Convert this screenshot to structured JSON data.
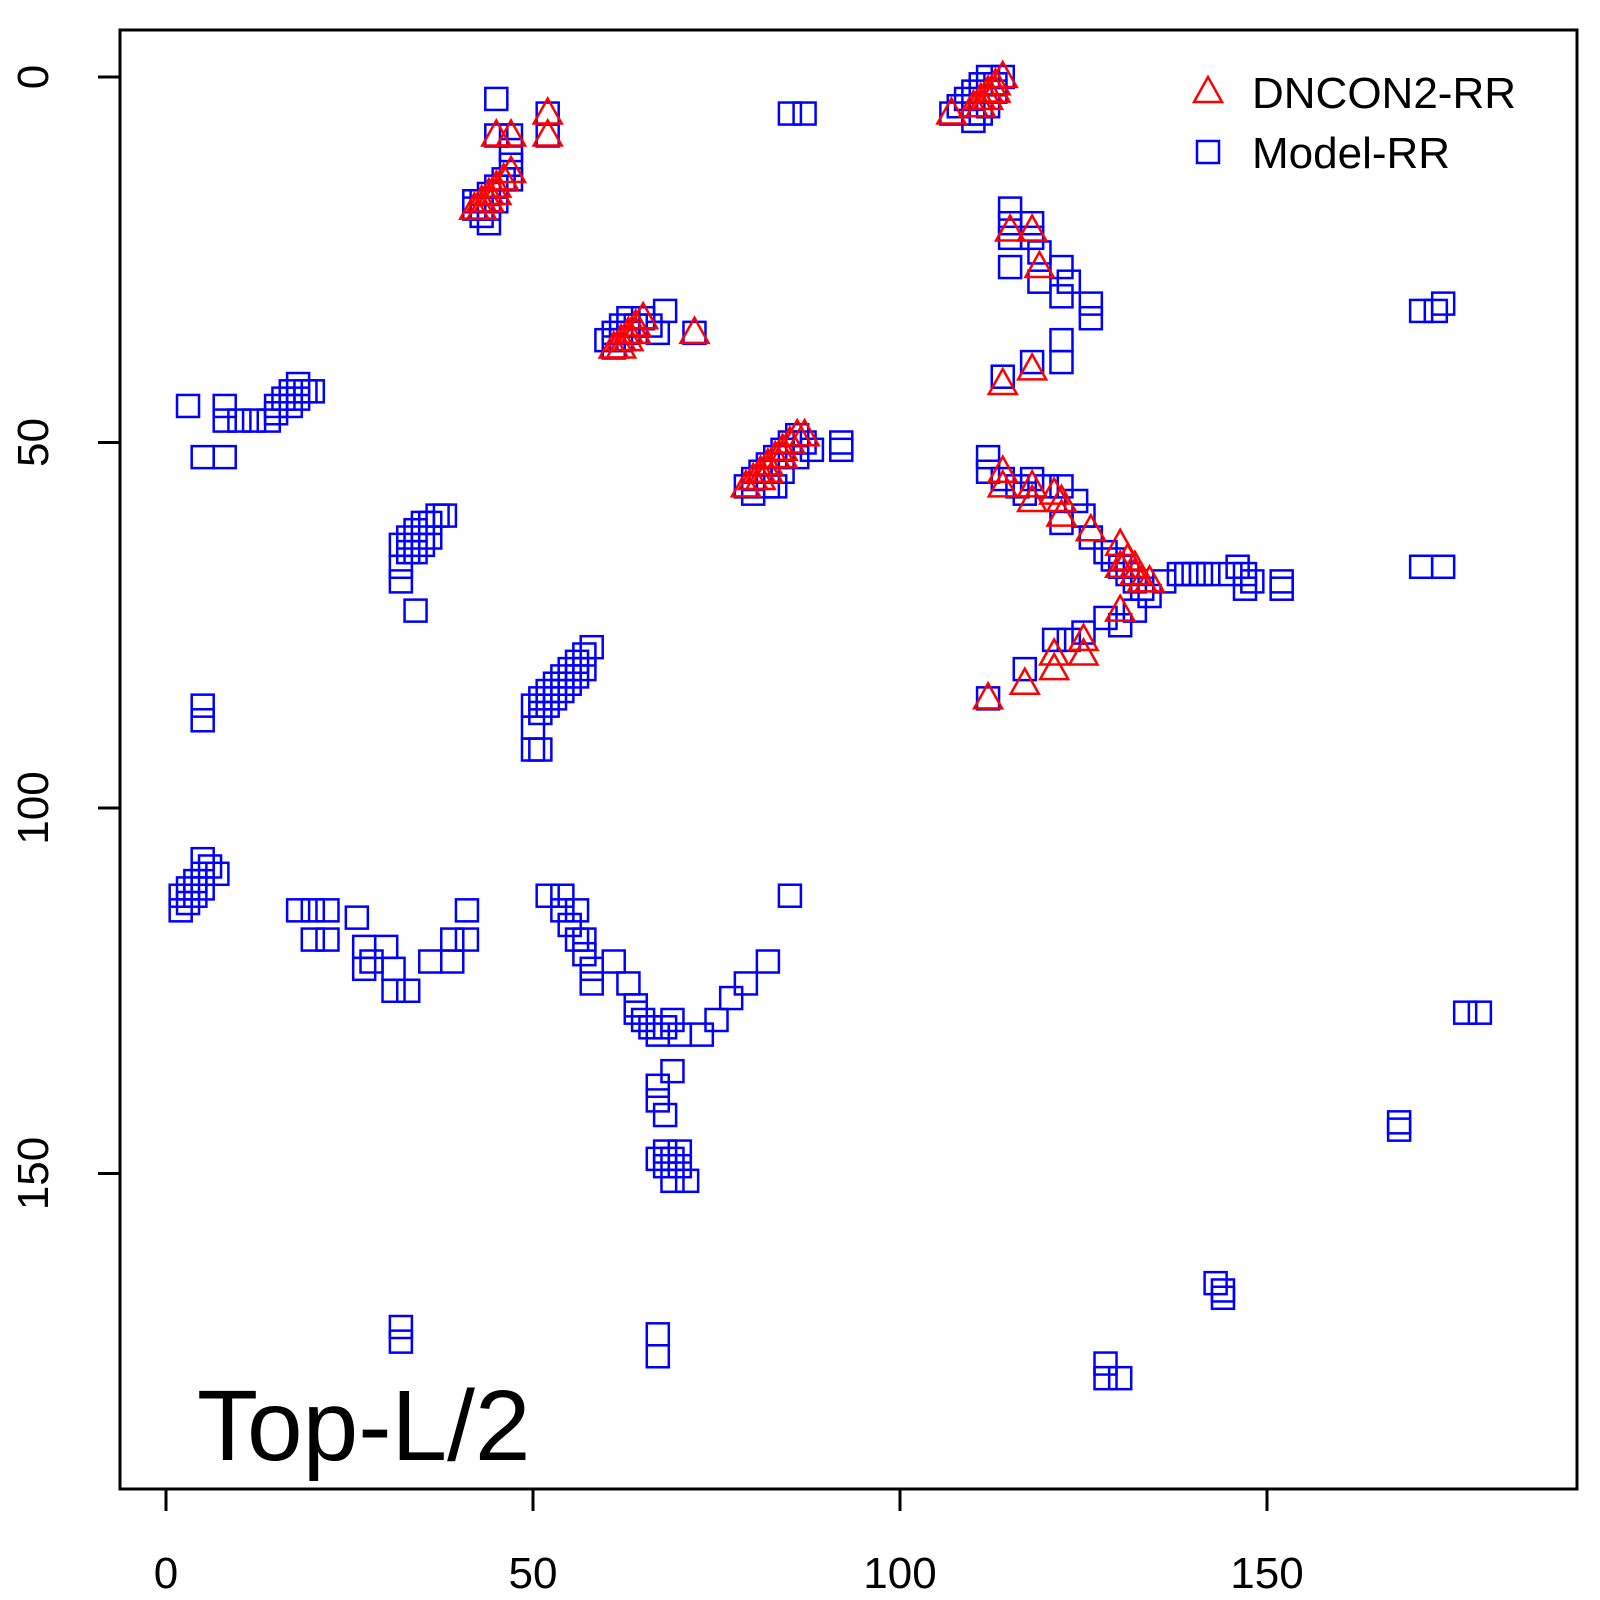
{
  "chart_data": {
    "type": "scatter",
    "title": "",
    "xlabel": "",
    "ylabel": "",
    "xlim": [
      -6,
      193
    ],
    "ylim": [
      190,
      -6
    ],
    "y_inverted": true,
    "x_ticks": [
      0,
      50,
      100,
      150
    ],
    "y_ticks": [
      0,
      50,
      100,
      150
    ],
    "grid": false,
    "legend_position": "top-right",
    "annotation": "Top-L/2",
    "series": [
      {
        "name": "DNCON2-RR",
        "marker": "triangle",
        "color": "#ff0000",
        "points": [
          [
            52,
            5
          ],
          [
            52,
            8
          ],
          [
            45,
            8
          ],
          [
            47,
            8
          ],
          [
            42,
            18
          ],
          [
            43,
            17
          ],
          [
            44,
            16
          ],
          [
            45,
            15
          ],
          [
            46,
            14
          ],
          [
            47,
            13
          ],
          [
            43,
            18
          ],
          [
            44,
            17
          ],
          [
            45,
            16
          ],
          [
            61,
            37
          ],
          [
            62,
            36
          ],
          [
            63,
            35
          ],
          [
            64,
            34
          ],
          [
            65,
            33
          ],
          [
            62,
            37
          ],
          [
            63,
            36
          ],
          [
            64,
            35
          ],
          [
            72,
            35
          ],
          [
            107,
            5
          ],
          [
            110,
            4
          ],
          [
            111,
            3
          ],
          [
            112,
            2
          ],
          [
            113,
            1
          ],
          [
            114,
            0
          ],
          [
            111,
            4
          ],
          [
            112,
            3
          ],
          [
            113,
            2
          ],
          [
            79,
            56
          ],
          [
            80,
            55
          ],
          [
            81,
            54
          ],
          [
            82,
            53
          ],
          [
            83,
            52
          ],
          [
            84,
            51
          ],
          [
            85,
            50
          ],
          [
            86,
            49
          ],
          [
            87,
            49
          ],
          [
            81,
            55
          ],
          [
            82,
            54
          ],
          [
            84,
            52
          ],
          [
            115,
            21
          ],
          [
            118,
            21
          ],
          [
            119,
            26
          ],
          [
            114,
            42
          ],
          [
            118,
            40
          ],
          [
            114,
            54
          ],
          [
            114,
            56
          ],
          [
            118,
            56
          ],
          [
            118,
            58
          ],
          [
            121,
            57
          ],
          [
            122,
            58
          ],
          [
            122,
            60
          ],
          [
            126,
            62
          ],
          [
            130,
            64
          ],
          [
            130,
            67
          ],
          [
            131,
            66
          ],
          [
            132,
            67
          ],
          [
            132,
            68
          ],
          [
            133,
            69
          ],
          [
            134,
            69
          ],
          [
            130,
            73
          ],
          [
            112,
            85
          ],
          [
            117,
            83
          ],
          [
            121,
            79
          ],
          [
            121,
            81
          ],
          [
            125,
            77
          ],
          [
            125,
            79
          ]
        ]
      },
      {
        "name": "Model-RR",
        "marker": "square",
        "color": "#0000ff",
        "points": [
          [
            45,
            3
          ],
          [
            45,
            8
          ],
          [
            47,
            8
          ],
          [
            47,
            10
          ],
          [
            47,
            12
          ],
          [
            52,
            5
          ],
          [
            52,
            8
          ],
          [
            42,
            17
          ],
          [
            43,
            17
          ],
          [
            44,
            16
          ],
          [
            45,
            15
          ],
          [
            46,
            14
          ],
          [
            42,
            18
          ],
          [
            43,
            18
          ],
          [
            44,
            18
          ],
          [
            43,
            19
          ],
          [
            44,
            20
          ],
          [
            45,
            17
          ],
          [
            47,
            14
          ],
          [
            85,
            5
          ],
          [
            87,
            5
          ],
          [
            107,
            5
          ],
          [
            108,
            4
          ],
          [
            109,
            3
          ],
          [
            110,
            2
          ],
          [
            111,
            1
          ],
          [
            112,
            0
          ],
          [
            113,
            1
          ],
          [
            114,
            0
          ],
          [
            110,
            5
          ],
          [
            111,
            5
          ],
          [
            110,
            6
          ],
          [
            112,
            4
          ],
          [
            113,
            2
          ],
          [
            115,
            18
          ],
          [
            115,
            20
          ],
          [
            115,
            22
          ],
          [
            118,
            20
          ],
          [
            118,
            22
          ],
          [
            119,
            24
          ],
          [
            119,
            28
          ],
          [
            115,
            26
          ],
          [
            122,
            26
          ],
          [
            122,
            30
          ],
          [
            123,
            28
          ],
          [
            126,
            31
          ],
          [
            126,
            33
          ],
          [
            122,
            36
          ],
          [
            122,
            39
          ],
          [
            114,
            41
          ],
          [
            118,
            39
          ],
          [
            60,
            36
          ],
          [
            61,
            37
          ],
          [
            62,
            36
          ],
          [
            63,
            35
          ],
          [
            64,
            34
          ],
          [
            65,
            33
          ],
          [
            66,
            34
          ],
          [
            67,
            35
          ],
          [
            68,
            32
          ],
          [
            61,
            35
          ],
          [
            62,
            34
          ],
          [
            63,
            33
          ],
          [
            72,
            35
          ],
          [
            173,
            32
          ],
          [
            171,
            32
          ],
          [
            174,
            31
          ],
          [
            3,
            45
          ],
          [
            8,
            45
          ],
          [
            8,
            47
          ],
          [
            10,
            47
          ],
          [
            12,
            47
          ],
          [
            14,
            47
          ],
          [
            15,
            46
          ],
          [
            15,
            45
          ],
          [
            16,
            44
          ],
          [
            17,
            43
          ],
          [
            17,
            45
          ],
          [
            18,
            42
          ],
          [
            18,
            44
          ],
          [
            19,
            43
          ],
          [
            20,
            43
          ],
          [
            5,
            52
          ],
          [
            8,
            52
          ],
          [
            79,
            56
          ],
          [
            80,
            55
          ],
          [
            81,
            54
          ],
          [
            82,
            53
          ],
          [
            83,
            52
          ],
          [
            84,
            51
          ],
          [
            85,
            50
          ],
          [
            86,
            49
          ],
          [
            87,
            50
          ],
          [
            88,
            51
          ],
          [
            92,
            50
          ],
          [
            92,
            51
          ],
          [
            80,
            57
          ],
          [
            82,
            56
          ],
          [
            84,
            54
          ],
          [
            86,
            52
          ],
          [
            83,
            56
          ],
          [
            32,
            64
          ],
          [
            32,
            67
          ],
          [
            33,
            63
          ],
          [
            34,
            62
          ],
          [
            35,
            61
          ],
          [
            36,
            61
          ],
          [
            37,
            60
          ],
          [
            38,
            60
          ],
          [
            33,
            65
          ],
          [
            34,
            65
          ],
          [
            35,
            64
          ],
          [
            36,
            63
          ],
          [
            32,
            69
          ],
          [
            34,
            73
          ],
          [
            112,
            52
          ],
          [
            112,
            54
          ],
          [
            114,
            55
          ],
          [
            116,
            56
          ],
          [
            118,
            55
          ],
          [
            117,
            57
          ],
          [
            120,
            56
          ],
          [
            122,
            56
          ],
          [
            124,
            58
          ],
          [
            122,
            61
          ],
          [
            125,
            60
          ],
          [
            126,
            63
          ],
          [
            128,
            65
          ],
          [
            129,
            66
          ],
          [
            130,
            67
          ],
          [
            131,
            68
          ],
          [
            132,
            69
          ],
          [
            133,
            70
          ],
          [
            134,
            71
          ],
          [
            136,
            69
          ],
          [
            138,
            68
          ],
          [
            139,
            68
          ],
          [
            140,
            68
          ],
          [
            141,
            68
          ],
          [
            142,
            68
          ],
          [
            145,
            68
          ],
          [
            146,
            67
          ],
          [
            147,
            68
          ],
          [
            148,
            69
          ],
          [
            152,
            69
          ],
          [
            152,
            70
          ],
          [
            147,
            70
          ],
          [
            130,
            75
          ],
          [
            132,
            73
          ],
          [
            171,
            67
          ],
          [
            174,
            67
          ],
          [
            5,
            86
          ],
          [
            5,
            88
          ],
          [
            50,
            86
          ],
          [
            50,
            89
          ],
          [
            50,
            92
          ],
          [
            51,
            85
          ],
          [
            52,
            84
          ],
          [
            53,
            83
          ],
          [
            54,
            82
          ],
          [
            55,
            81
          ],
          [
            56,
            80
          ],
          [
            57,
            79
          ],
          [
            58,
            78
          ],
          [
            51,
            87
          ],
          [
            52,
            86
          ],
          [
            53,
            85
          ],
          [
            54,
            84
          ],
          [
            55,
            83
          ],
          [
            56,
            82
          ],
          [
            57,
            81
          ],
          [
            51,
            92
          ],
          [
            112,
            85
          ],
          [
            117,
            81
          ],
          [
            121,
            77
          ],
          [
            123,
            77
          ],
          [
            125,
            76
          ],
          [
            128,
            74
          ],
          [
            2,
            112
          ],
          [
            3,
            111
          ],
          [
            4,
            110
          ],
          [
            5,
            109
          ],
          [
            6,
            108
          ],
          [
            7,
            109
          ],
          [
            2,
            114
          ],
          [
            3,
            113
          ],
          [
            4,
            112
          ],
          [
            5,
            111
          ],
          [
            5,
            107
          ],
          [
            18,
            114
          ],
          [
            20,
            114
          ],
          [
            20,
            118
          ],
          [
            22,
            114
          ],
          [
            22,
            118
          ],
          [
            26,
            115
          ],
          [
            27,
            119
          ],
          [
            27,
            122
          ],
          [
            28,
            121
          ],
          [
            30,
            119
          ],
          [
            31,
            122
          ],
          [
            31,
            125
          ],
          [
            33,
            125
          ],
          [
            36,
            121
          ],
          [
            39,
            121
          ],
          [
            39,
            118
          ],
          [
            41,
            118
          ],
          [
            41,
            114
          ],
          [
            52,
            112
          ],
          [
            54,
            112
          ],
          [
            54,
            114
          ],
          [
            55,
            116
          ],
          [
            56,
            114
          ],
          [
            56,
            118
          ],
          [
            57,
            118
          ],
          [
            57,
            120
          ],
          [
            58,
            122
          ],
          [
            58,
            124
          ],
          [
            61,
            121
          ],
          [
            63,
            124
          ],
          [
            64,
            127
          ],
          [
            64,
            128
          ],
          [
            65,
            129
          ],
          [
            66,
            130
          ],
          [
            67,
            131
          ],
          [
            68,
            130
          ],
          [
            69,
            129
          ],
          [
            70,
            131
          ],
          [
            73,
            131
          ],
          [
            75,
            129
          ],
          [
            77,
            126
          ],
          [
            79,
            124
          ],
          [
            82,
            121
          ],
          [
            85,
            112
          ],
          [
            67,
            138
          ],
          [
            67,
            140
          ],
          [
            68,
            142
          ],
          [
            69,
            136
          ],
          [
            67,
            148
          ],
          [
            68,
            147
          ],
          [
            68,
            149
          ],
          [
            69,
            148
          ],
          [
            70,
            149
          ],
          [
            69,
            151
          ],
          [
            71,
            151
          ],
          [
            70,
            147
          ],
          [
            177,
            128
          ],
          [
            179,
            128
          ],
          [
            168,
            143
          ],
          [
            168,
            144
          ],
          [
            32,
            171
          ],
          [
            32,
            173
          ],
          [
            67,
            172
          ],
          [
            67,
            175
          ],
          [
            143,
            165
          ],
          [
            144,
            166
          ],
          [
            128,
            176
          ],
          [
            128,
            178
          ],
          [
            130,
            178
          ],
          [
            144,
            167
          ]
        ]
      }
    ]
  }
}
